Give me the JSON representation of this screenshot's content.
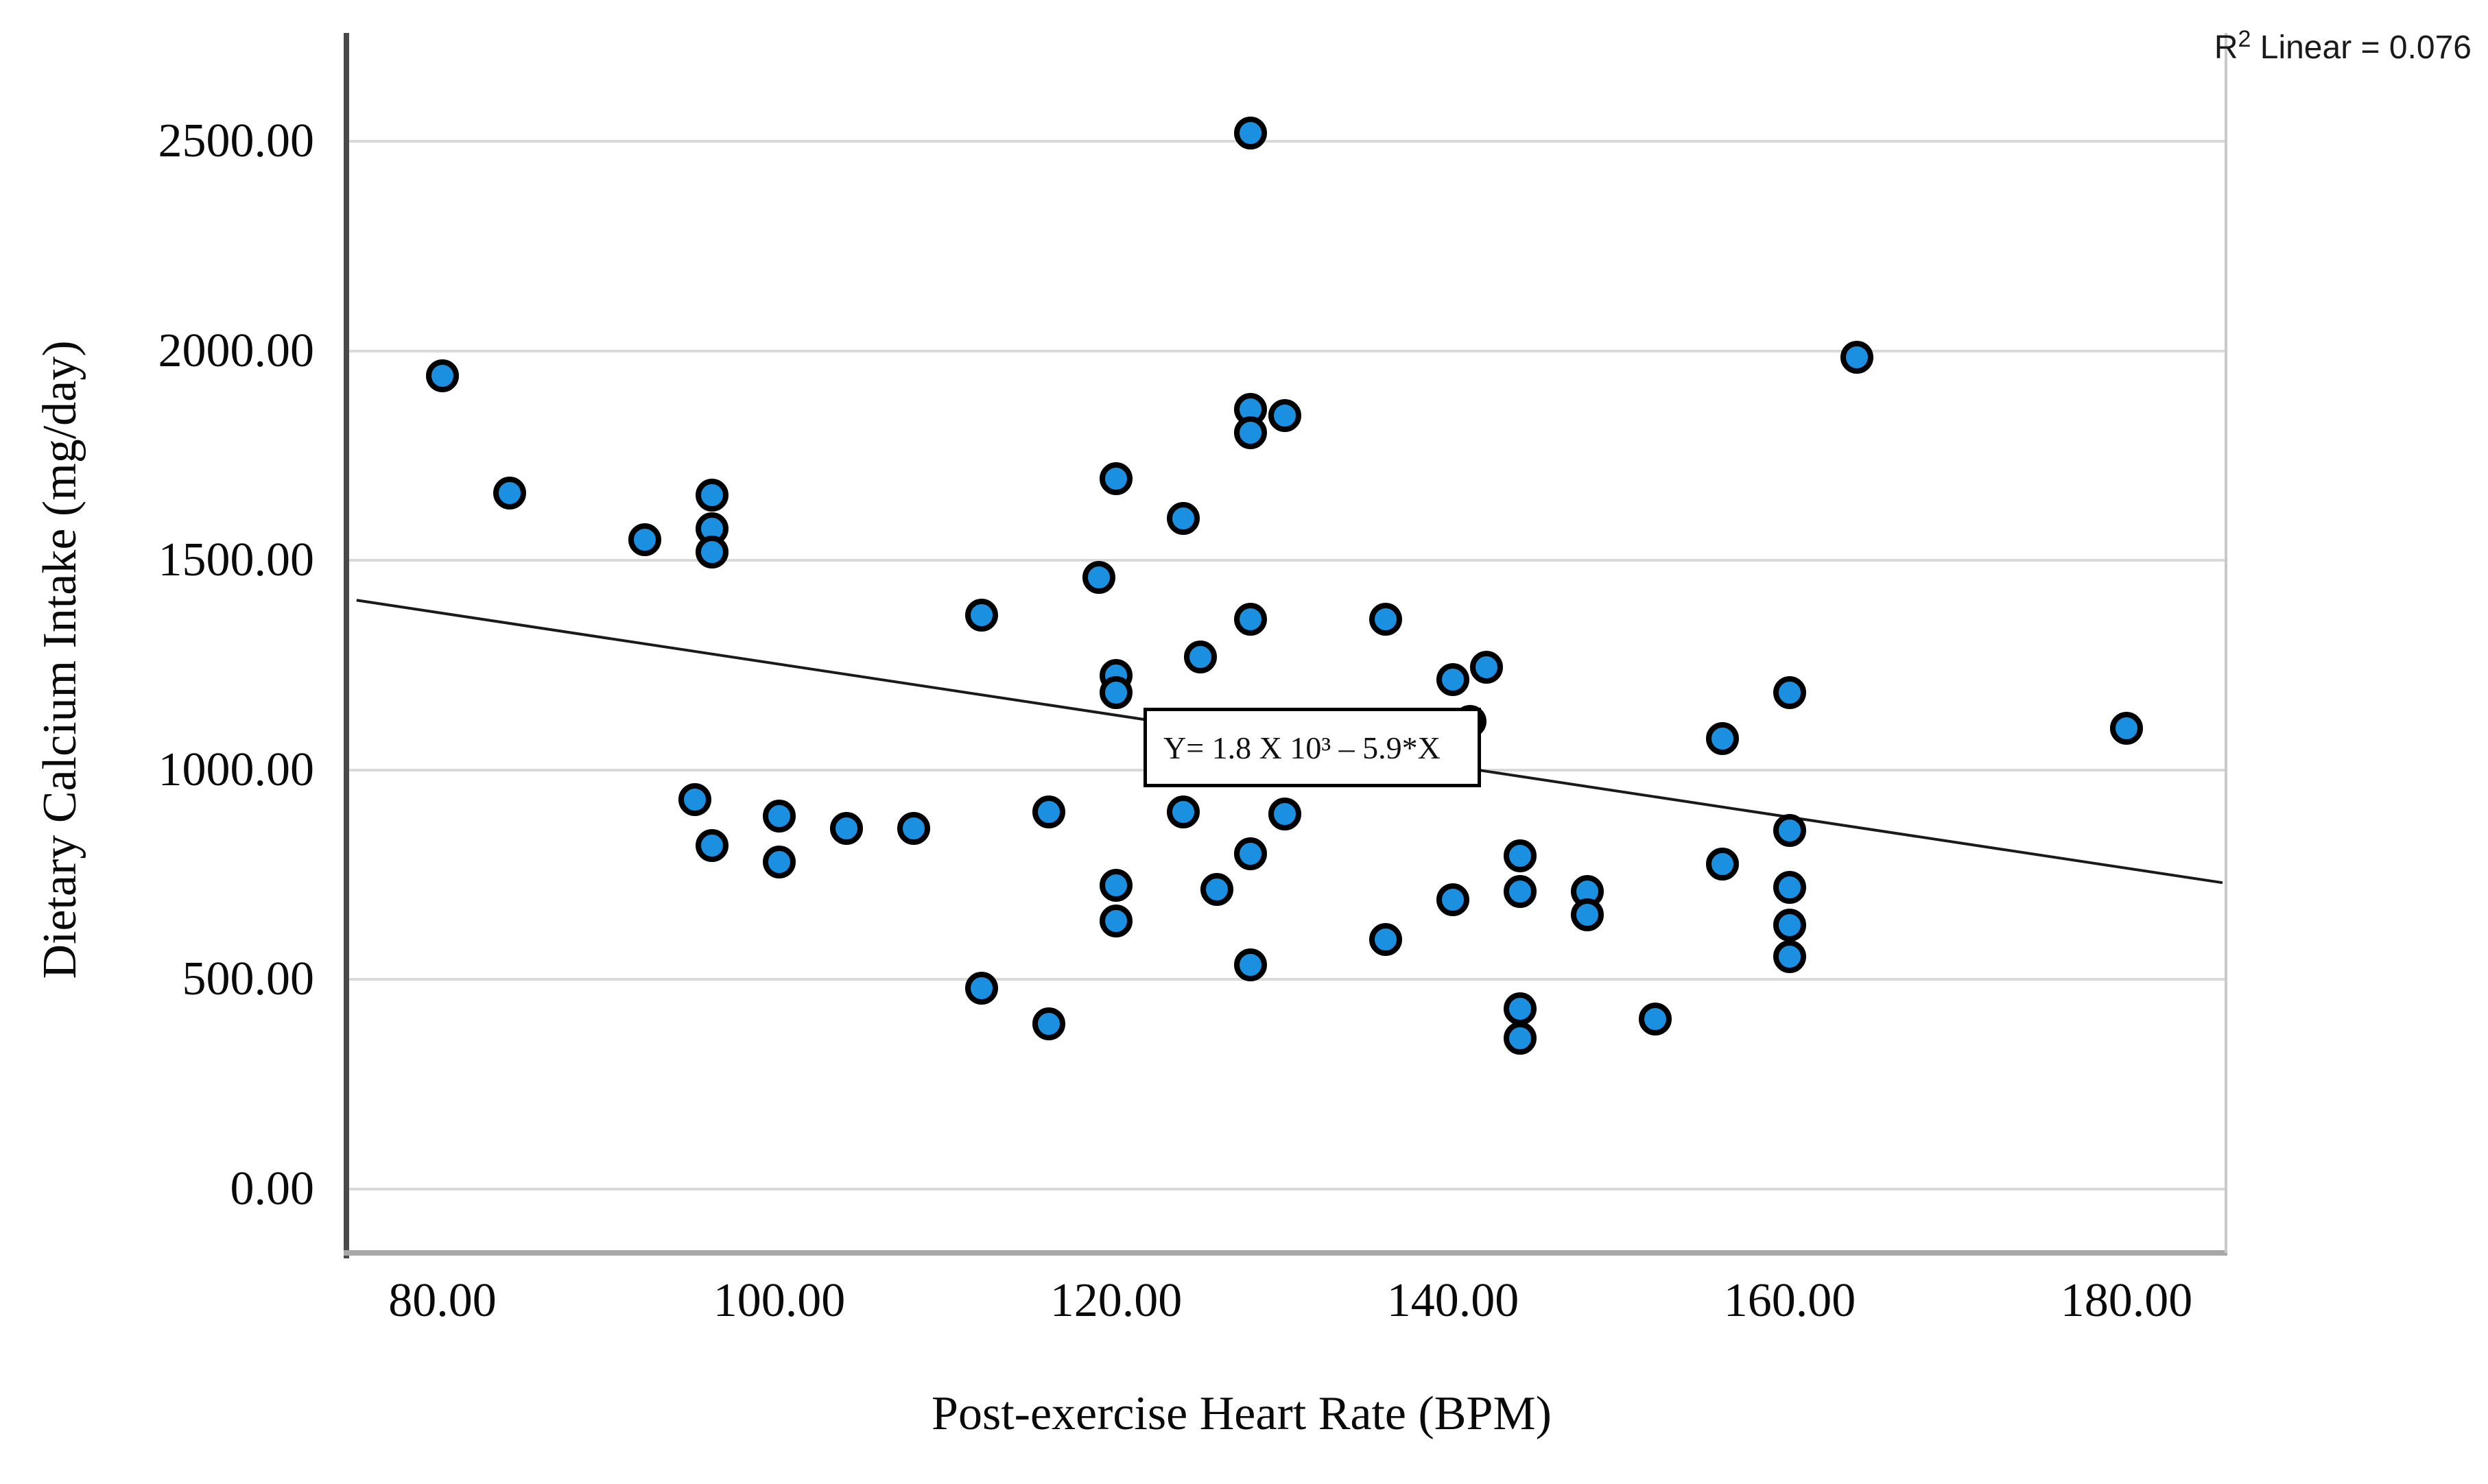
{
  "chart_data": {
    "type": "scatter",
    "title": "",
    "xlabel": "Post-exercise Heart Rate (BPM)",
    "ylabel": "Dietary Calcium Intake (mg/day)",
    "x_ticks": [
      {
        "label": "80.00",
        "value": 80
      },
      {
        "label": "100.00",
        "value": 100
      },
      {
        "label": "120.00",
        "value": 120
      },
      {
        "label": "140.00",
        "value": 140
      },
      {
        "label": "160.00",
        "value": 160
      },
      {
        "label": "180.00",
        "value": 180
      }
    ],
    "y_ticks": [
      {
        "label": "0.00",
        "value": 0
      },
      {
        "label": "500.00",
        "value": 500
      },
      {
        "label": "1000.00",
        "value": 1000
      },
      {
        "label": "1500.00",
        "value": 1500
      },
      {
        "label": "2000.00",
        "value": 2000
      },
      {
        "label": "2500.00",
        "value": 2500
      }
    ],
    "xlim": [
      74.3,
      185.8
    ],
    "ylim": [
      -150,
      2770
    ],
    "grid": "horizontal",
    "legend_position": "none",
    "r2_annotation": {
      "prefix": "R",
      "sup": "2",
      "rest": " Linear = 0.076"
    },
    "equation_label": "Y= 1.8 X 10³ – 5.9*X",
    "trendline": {
      "x1": 74.9,
      "y1": 1405,
      "x2": 185.7,
      "y2": 731
    },
    "points": [
      [
        80,
        1940
      ],
      [
        84,
        1660
      ],
      [
        92,
        1550
      ],
      [
        96,
        1655
      ],
      [
        96,
        1575
      ],
      [
        96,
        1520
      ],
      [
        95,
        930
      ],
      [
        96,
        820
      ],
      [
        100,
        890
      ],
      [
        100,
        780
      ],
      [
        104,
        860
      ],
      [
        108,
        860
      ],
      [
        112,
        1370
      ],
      [
        112,
        480
      ],
      [
        116,
        900
      ],
      [
        116,
        395
      ],
      [
        119,
        1460
      ],
      [
        120,
        1695
      ],
      [
        120,
        1225
      ],
      [
        120,
        1185
      ],
      [
        120,
        725
      ],
      [
        120,
        640
      ],
      [
        124,
        1600
      ],
      [
        124,
        900
      ],
      [
        125,
        1270
      ],
      [
        126,
        715
      ],
      [
        128,
        2520
      ],
      [
        128,
        1860
      ],
      [
        128,
        1805
      ],
      [
        128,
        1360
      ],
      [
        128,
        800
      ],
      [
        128,
        535
      ],
      [
        130,
        1845
      ],
      [
        130,
        895
      ],
      [
        136,
        1360
      ],
      [
        136,
        595
      ],
      [
        140,
        1215
      ],
      [
        140,
        690
      ],
      [
        141,
        1115
      ],
      [
        142,
        1245
      ],
      [
        144,
        795
      ],
      [
        144,
        710
      ],
      [
        144,
        430
      ],
      [
        144,
        360
      ],
      [
        148,
        710
      ],
      [
        148,
        655
      ],
      [
        152,
        405
      ],
      [
        156,
        1075
      ],
      [
        156,
        775
      ],
      [
        160,
        1185
      ],
      [
        160,
        855
      ],
      [
        160,
        720
      ],
      [
        160,
        630
      ],
      [
        160,
        555
      ],
      [
        164,
        1985
      ],
      [
        180,
        1100
      ]
    ],
    "colors": {
      "dot_fill": "#1B90E0",
      "dot_stroke": "#000000",
      "gridline": "#d9d9d9",
      "left_axis": "#4a4a4a",
      "bottom_axis": "#a8a8a8",
      "right_axis": "#c9c9c9",
      "trendline": "#1a1a1a"
    }
  }
}
